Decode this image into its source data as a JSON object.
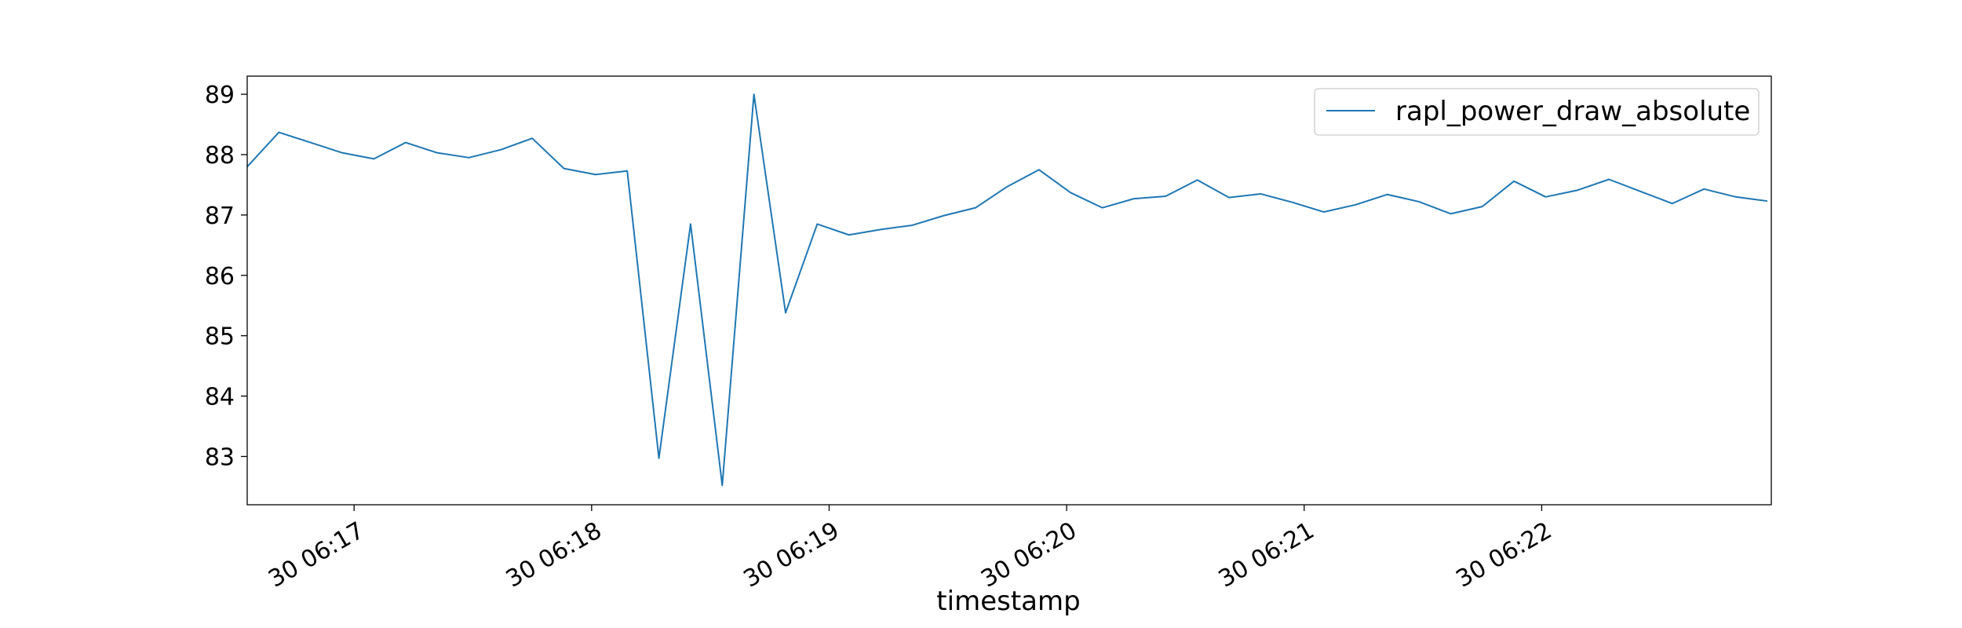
{
  "chart_data": {
    "type": "line",
    "title": "",
    "xlabel": "timestamp",
    "ylabel": "",
    "x_tick_labels": [
      "30 06:17",
      "30 06:18",
      "30 06:19",
      "30 06:20",
      "30 06:21",
      "30 06:22"
    ],
    "y_ticks": [
      83,
      84,
      85,
      86,
      87,
      88,
      89
    ],
    "ylim": [
      82.2,
      89.3
    ],
    "xlim": [
      "06:16:33",
      "06:22:58"
    ],
    "grid": false,
    "legend_position": "upper right",
    "series": [
      {
        "name": "rapl_power_draw_absolute",
        "color": "#1f77b4",
        "x": [
          "06:16:33",
          "06:16:41",
          "06:16:49",
          "06:16:57",
          "06:17:05",
          "06:17:13",
          "06:17:21",
          "06:17:29",
          "06:17:37",
          "06:17:45",
          "06:17:53",
          "06:18:01",
          "06:18:09",
          "06:18:17",
          "06:18:25",
          "06:18:33",
          "06:18:41",
          "06:18:49",
          "06:18:57",
          "06:19:05",
          "06:19:13",
          "06:19:21",
          "06:19:29",
          "06:19:37",
          "06:19:45",
          "06:19:53",
          "06:20:01",
          "06:20:09",
          "06:20:17",
          "06:20:25",
          "06:20:33",
          "06:20:41",
          "06:20:49",
          "06:20:57",
          "06:21:05",
          "06:21:13",
          "06:21:21",
          "06:21:29",
          "06:21:37",
          "06:21:45",
          "06:21:53",
          "06:22:01",
          "06:22:09",
          "06:22:17",
          "06:22:25",
          "06:22:33",
          "06:22:41",
          "06:22:49",
          "06:22:57"
        ],
        "values": [
          87.8,
          88.37,
          88.2,
          88.03,
          87.93,
          88.2,
          88.03,
          87.95,
          88.08,
          88.27,
          87.77,
          87.67,
          87.73,
          82.97,
          86.85,
          82.52,
          89.0,
          85.38,
          86.85,
          86.67,
          86.76,
          86.83,
          86.99,
          87.12,
          87.47,
          87.75,
          87.37,
          87.12,
          87.27,
          87.31,
          87.58,
          87.29,
          87.35,
          87.21,
          87.05,
          87.17,
          87.34,
          87.22,
          87.02,
          87.14,
          87.56,
          87.3,
          87.41,
          87.59,
          87.39,
          87.19,
          87.43,
          87.3,
          87.23
        ]
      }
    ]
  }
}
